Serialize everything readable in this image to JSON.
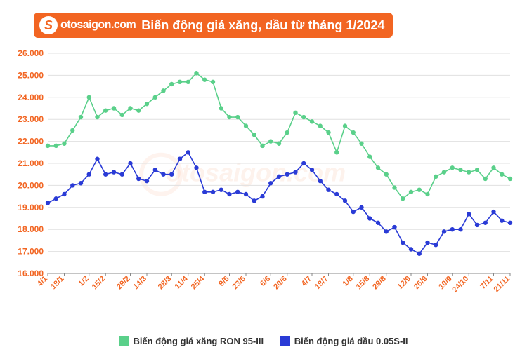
{
  "brand": {
    "icon_letter": "S",
    "name": "otosaigon.com",
    "bg_color": "#f26522",
    "text_color": "#ffffff"
  },
  "title": "Biến động giá xăng, dầu từ tháng 1/2024",
  "chart": {
    "type": "line",
    "background_color": "#ffffff",
    "grid_color": "#e0e0e0",
    "axis_color": "#888888",
    "label_color": "#f26522",
    "label_fontsize": 12,
    "ylim": [
      16000,
      26000
    ],
    "ytick_step": 1000,
    "y_ticks": [
      "16.000",
      "17.000",
      "18.000",
      "19.000",
      "20.000",
      "21.000",
      "22.000",
      "23.000",
      "24.000",
      "25.000",
      "26.000"
    ],
    "x_labels": [
      "4/1",
      "18/1",
      "1/2",
      "15/2",
      "29/2",
      "14/3",
      "28/3",
      "11/4",
      "25/4",
      "9/5",
      "23/5",
      "6/6",
      "20/6",
      "4/7",
      "18/7",
      "1/8",
      "15/8",
      "29/8",
      "12/9",
      "26/9",
      "10/9",
      "24/10",
      "7/11",
      "21/11"
    ],
    "x_label_step": 2,
    "marker_radius": 3.2,
    "line_width": 1.6,
    "series": [
      {
        "name": "Biến động giá xăng RON 95-III",
        "color": "#5ad08a",
        "values": [
          21800,
          21800,
          21900,
          22500,
          23100,
          24000,
          23100,
          23400,
          23500,
          23200,
          23500,
          23400,
          23700,
          24000,
          24300,
          24600,
          24700,
          24700,
          25100,
          24800,
          24700,
          23500,
          23100,
          23100,
          22700,
          22300,
          21800,
          22000,
          21900,
          22400,
          23300,
          23100,
          22900,
          22700,
          22400,
          21500,
          22700,
          22400,
          21900,
          21300,
          20800,
          20500,
          19900,
          19400,
          19700,
          19800,
          19600,
          20400,
          20600,
          20800,
          20700,
          20600,
          20700,
          20300,
          20800,
          20500,
          20300
        ]
      },
      {
        "name": "Biến động giá dầu 0.05S-II",
        "color": "#2a3bd6",
        "values": [
          19200,
          19400,
          19600,
          20000,
          20100,
          20500,
          21200,
          20500,
          20600,
          20500,
          21000,
          20300,
          20200,
          20700,
          20500,
          20500,
          21200,
          21500,
          20800,
          19700,
          19700,
          19800,
          19600,
          19700,
          19600,
          19300,
          19500,
          20100,
          20400,
          20500,
          20600,
          21000,
          20700,
          20200,
          19800,
          19600,
          19300,
          18800,
          19000,
          18500,
          18300,
          17900,
          18100,
          17400,
          17100,
          16900,
          17400,
          17300,
          17900,
          18000,
          18000,
          18700,
          18200,
          18300,
          18800,
          18400,
          18300
        ]
      }
    ]
  },
  "legend": {
    "items": [
      {
        "label": "Biến động giá xăng RON 95-III",
        "color": "#5ad08a"
      },
      {
        "label": "Biến động giá dầu 0.05S-II",
        "color": "#2a3bd6"
      }
    ]
  },
  "watermark": "otosaigon.com"
}
